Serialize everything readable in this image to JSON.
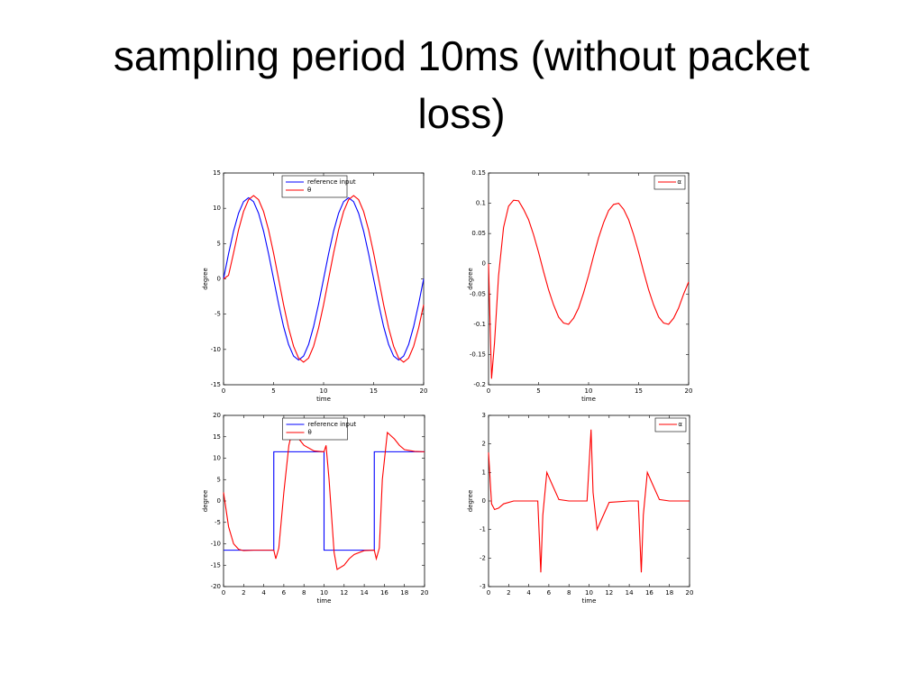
{
  "title": "sampling period 10ms (without packet loss)",
  "chart_data": [
    {
      "type": "line",
      "xlabel": "time",
      "ylabel": "degree",
      "xlim": [
        0,
        20
      ],
      "xticks": [
        0,
        5,
        10,
        15,
        20
      ],
      "ylim": [
        -15,
        15
      ],
      "yticks": [
        -15,
        -10,
        -5,
        0,
        5,
        10,
        15
      ],
      "legend": "upper center",
      "series": [
        {
          "name": "reference input",
          "color": "#0000ff",
          "x": [
            0,
            0.5,
            1,
            1.5,
            2,
            2.5,
            3,
            3.5,
            4,
            4.5,
            5,
            5.5,
            6,
            6.5,
            7,
            7.5,
            8,
            8.5,
            9,
            9.5,
            10,
            10.5,
            11,
            11.5,
            12,
            12.5,
            13,
            13.5,
            14,
            14.5,
            15,
            15.5,
            16,
            16.5,
            17,
            17.5,
            18,
            18.5,
            19,
            19.5,
            20
          ],
          "values": [
            0,
            3.55,
            6.76,
            9.3,
            10.94,
            11.5,
            10.94,
            9.3,
            6.76,
            3.55,
            0,
            -3.55,
            -6.76,
            -9.3,
            -10.94,
            -11.5,
            -10.94,
            -9.3,
            -6.76,
            -3.55,
            0,
            3.55,
            6.76,
            9.3,
            10.94,
            11.5,
            10.94,
            9.3,
            6.76,
            3.55,
            0,
            -3.55,
            -6.76,
            -9.3,
            -10.94,
            -11.5,
            -10.94,
            -9.3,
            -6.76,
            -3.55,
            0
          ]
        },
        {
          "name": "θ",
          "color": "#ff0000",
          "x": [
            0,
            0.5,
            1,
            1.5,
            2,
            2.5,
            3,
            3.5,
            4,
            4.5,
            5,
            5.5,
            6,
            6.5,
            7,
            7.5,
            8,
            8.5,
            9,
            9.5,
            10,
            10.5,
            11,
            11.5,
            12,
            12.5,
            13,
            13.5,
            14,
            14.5,
            15,
            15.5,
            16,
            16.5,
            17,
            17.5,
            18,
            18.5,
            19,
            19.5,
            20
          ],
          "values": [
            0,
            0.5,
            3.65,
            6.94,
            9.55,
            11.22,
            11.8,
            11.22,
            9.55,
            6.94,
            3.65,
            0,
            -3.65,
            -6.94,
            -9.55,
            -11.22,
            -11.8,
            -11.22,
            -9.55,
            -6.94,
            -3.65,
            0,
            3.65,
            6.94,
            9.55,
            11.22,
            11.8,
            11.22,
            9.55,
            6.94,
            3.65,
            0,
            -3.65,
            -6.94,
            -9.55,
            -11.22,
            -11.8,
            -11.22,
            -9.55,
            -6.94,
            -3.65
          ]
        }
      ]
    },
    {
      "type": "line",
      "xlabel": "time",
      "ylabel": "degree",
      "xlim": [
        0,
        20
      ],
      "xticks": [
        0,
        5,
        10,
        15,
        20
      ],
      "ylim": [
        -0.2,
        0.15
      ],
      "yticks": [
        -0.2,
        -0.15,
        -0.1,
        -0.05,
        0,
        0.05,
        0.1,
        0.15
      ],
      "legend": "upper right",
      "series": [
        {
          "name": "α",
          "color": "#ff0000",
          "x": [
            0,
            0.3,
            0.6,
            1,
            1.5,
            2,
            2.5,
            3,
            3.5,
            4,
            4.5,
            5,
            5.5,
            6,
            6.5,
            7,
            7.5,
            8,
            8.5,
            9,
            9.5,
            10,
            10.5,
            11,
            11.5,
            12,
            12.5,
            13,
            13.5,
            14,
            14.5,
            15,
            15.5,
            16,
            16.5,
            17,
            17.5,
            18,
            18.5,
            19,
            19.5,
            20
          ],
          "values": [
            0,
            -0.19,
            -0.13,
            -0.02,
            0.06,
            0.095,
            0.105,
            0.104,
            0.09,
            0.073,
            0.048,
            0.019,
            -0.013,
            -0.043,
            -0.068,
            -0.088,
            -0.098,
            -0.1,
            -0.09,
            -0.073,
            -0.048,
            -0.019,
            0.013,
            0.043,
            0.068,
            0.088,
            0.098,
            0.1,
            0.09,
            0.073,
            0.048,
            0.019,
            -0.013,
            -0.043,
            -0.068,
            -0.088,
            -0.098,
            -0.1,
            -0.09,
            -0.073,
            -0.05,
            -0.03
          ]
        }
      ]
    },
    {
      "type": "line",
      "xlabel": "time",
      "ylabel": "degree",
      "xlim": [
        0,
        20
      ],
      "xticks": [
        0,
        2,
        4,
        6,
        8,
        10,
        12,
        14,
        16,
        18,
        20
      ],
      "ylim": [
        -20,
        20
      ],
      "yticks": [
        -20,
        -15,
        -10,
        -5,
        0,
        5,
        10,
        15,
        20
      ],
      "legend": "upper center",
      "series": [
        {
          "name": "reference input",
          "color": "#0000ff",
          "x": [
            0,
            5,
            5,
            10,
            10,
            15,
            15,
            20
          ],
          "values": [
            -11.5,
            -11.5,
            11.5,
            11.5,
            -11.5,
            -11.5,
            11.5,
            11.5
          ]
        },
        {
          "name": "θ",
          "color": "#ff0000",
          "x": [
            0,
            0.5,
            1,
            1.5,
            2,
            3,
            4,
            5,
            5.2,
            5.5,
            6,
            6.5,
            6.8,
            7.5,
            8,
            9,
            10,
            10.2,
            10.5,
            11,
            11.3,
            12,
            12.5,
            13,
            14,
            15,
            15.2,
            15.5,
            15.8,
            16.3,
            17,
            17.5,
            18,
            19,
            20
          ],
          "values": [
            2,
            -6,
            -10,
            -11.3,
            -11.6,
            -11.5,
            -11.5,
            -11.5,
            -13.5,
            -11,
            2,
            13,
            16,
            14.5,
            13,
            11.7,
            11.5,
            13,
            5,
            -12,
            -16,
            -15,
            -13.5,
            -12.5,
            -11.6,
            -11.5,
            -13.5,
            -11,
            5,
            16,
            14.5,
            13,
            12,
            11.6,
            11.5
          ]
        }
      ]
    },
    {
      "type": "line",
      "xlabel": "time",
      "ylabel": "degree",
      "xlim": [
        0,
        20
      ],
      "xticks": [
        0,
        2,
        4,
        6,
        8,
        10,
        12,
        14,
        16,
        18,
        20
      ],
      "ylim": [
        -3,
        3
      ],
      "yticks": [
        -3,
        -2,
        -1,
        0,
        1,
        2,
        3
      ],
      "legend": "upper right",
      "series": [
        {
          "name": "α",
          "color": "#ff0000",
          "x": [
            0,
            0.3,
            0.6,
            1,
            1.5,
            2.5,
            4,
            4.9,
            5.2,
            5.4,
            5.8,
            6.3,
            7,
            8,
            9.8,
            10.2,
            10.4,
            10.8,
            11.3,
            12,
            14,
            14.9,
            15.2,
            15.4,
            15.8,
            16.3,
            17,
            18,
            20
          ],
          "values": [
            1.7,
            -0.1,
            -0.3,
            -0.25,
            -0.1,
            0,
            0,
            0,
            -2.5,
            -0.5,
            1,
            0.6,
            0.05,
            0,
            0,
            2.5,
            0.3,
            -1,
            -0.6,
            -0.05,
            0,
            0,
            -2.5,
            -0.5,
            1,
            0.6,
            0.05,
            0,
            0
          ]
        }
      ]
    }
  ]
}
